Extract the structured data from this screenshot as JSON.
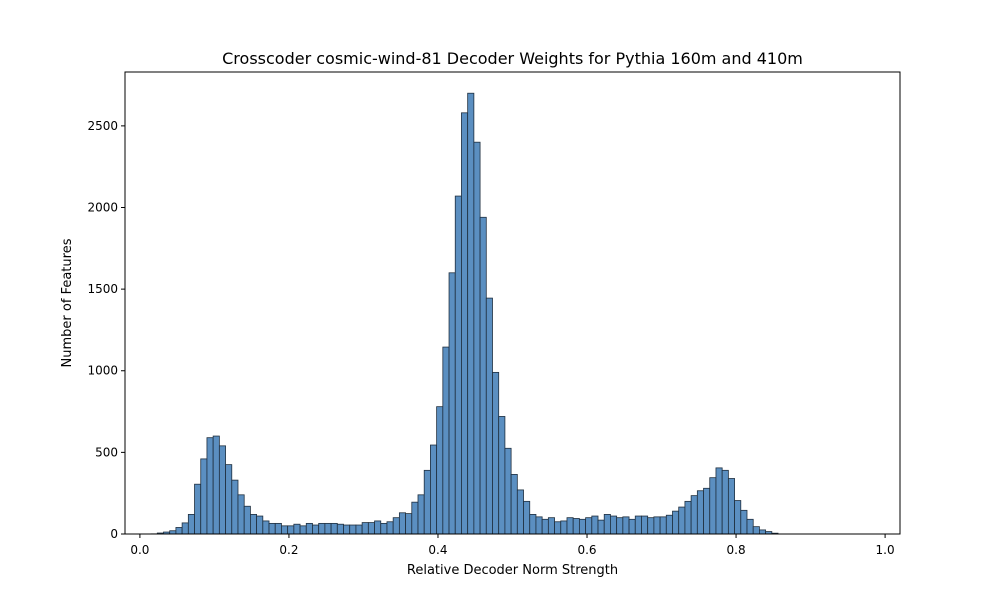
{
  "chart_data": {
    "type": "bar",
    "title": "Crosscoder cosmic-wind-81 Decoder Weights for Pythia 160m and 410m",
    "xlabel": "Relative Decoder Norm Strength",
    "ylabel": "Number of Features",
    "xlim": [
      -0.02,
      1.02
    ],
    "ylim": [
      0,
      2830
    ],
    "xticks": [
      "0.0",
      "0.2",
      "0.4",
      "0.6",
      "0.8",
      "1.0"
    ],
    "yticks": [
      "0",
      "500",
      "1000",
      "1500",
      "2000",
      "2500"
    ],
    "bin_start": 0.015,
    "bin_width": 0.00833,
    "values": [
      1,
      6,
      12,
      20,
      40,
      68,
      120,
      305,
      460,
      590,
      600,
      540,
      425,
      330,
      240,
      170,
      120,
      110,
      80,
      65,
      65,
      50,
      50,
      60,
      50,
      65,
      55,
      65,
      65,
      65,
      60,
      55,
      55,
      55,
      70,
      70,
      80,
      65,
      75,
      100,
      130,
      125,
      195,
      240,
      390,
      545,
      780,
      1145,
      1600,
      2070,
      2580,
      2700,
      2400,
      1940,
      1445,
      990,
      720,
      525,
      365,
      270,
      200,
      120,
      105,
      90,
      100,
      75,
      80,
      100,
      95,
      90,
      100,
      110,
      85,
      120,
      110,
      100,
      105,
      90,
      110,
      110,
      100,
      105,
      105,
      115,
      140,
      165,
      200,
      235,
      265,
      280,
      345,
      405,
      390,
      340,
      205,
      145,
      90,
      45,
      25,
      15,
      5
    ],
    "bar_color": "#5b8fc1",
    "edge_color": "#1f2f3f",
    "grid": false,
    "legend": "none"
  }
}
